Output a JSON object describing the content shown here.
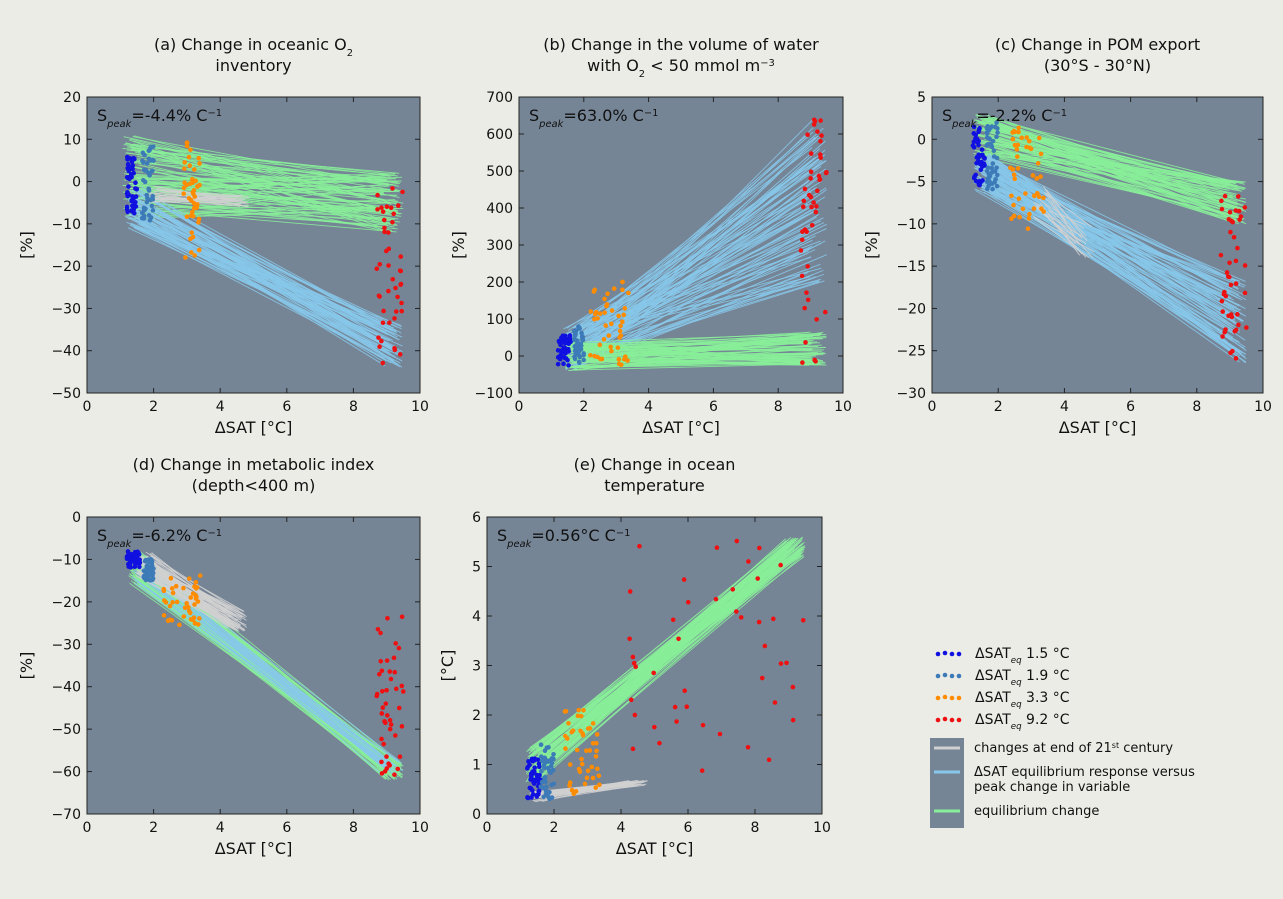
{
  "figure": {
    "background": "#ecece7",
    "axes_background": "#768596"
  },
  "colors": {
    "sat_1_5": "#1010e0",
    "sat_1_9": "#3d7ab8",
    "sat_3_3": "#ff8c00",
    "sat_9_2": "#ee1111",
    "line_21st": "#d0d0d0",
    "line_peak": "#87c8ea",
    "line_equilibrium": "#88ee99"
  },
  "legend": {
    "items": [
      {
        "label": "ΔSAT_eq 1.5 °C",
        "base": "ΔSAT",
        "sub": "eq",
        "rest": " 1.5 °C",
        "color": "#1010e0",
        "kind": "dots"
      },
      {
        "label": "ΔSAT_eq 1.9 °C",
        "base": "ΔSAT",
        "sub": "eq",
        "rest": " 1.9 °C",
        "color": "#3d7ab8",
        "kind": "dots"
      },
      {
        "label": "ΔSAT_eq 3.3 °C",
        "base": "ΔSAT",
        "sub": "eq",
        "rest": " 3.3 °C",
        "color": "#ff8c00",
        "kind": "dots"
      },
      {
        "label": "ΔSAT_eq 9.2 °C",
        "base": "ΔSAT",
        "sub": "eq",
        "rest": " 9.2 °C",
        "color": "#ee1111",
        "kind": "dots"
      },
      {
        "label": "changes at end of 21st century",
        "lines": [
          "changes at end of 21st century"
        ],
        "color": "#d0d0d0",
        "kind": "line"
      },
      {
        "label": "ΔSAT equilibrium response versus peak change in variable",
        "lines": [
          "ΔSAT equilibrium response versus",
          "peak change in variable"
        ],
        "color": "#87c8ea",
        "kind": "line"
      },
      {
        "label": "equilibrium change",
        "lines": [
          "equilibrium change"
        ],
        "color": "#88ee99",
        "kind": "line"
      }
    ]
  },
  "chart_data": [
    {
      "id": "a",
      "type": "scatter",
      "title_lines": [
        "(a) Change in oceanic O2",
        "inventory"
      ],
      "annotation": "S_peak=-4.4% C-1",
      "xlabel": "ΔSAT [°C]",
      "ylabel": "[%]",
      "xlim": [
        0,
        10
      ],
      "ylim": [
        -50,
        20
      ],
      "xticks": [
        0,
        2,
        4,
        6,
        8,
        10
      ],
      "yticks": [
        -50,
        -40,
        -30,
        -20,
        -10,
        0,
        10,
        20
      ],
      "series": [
        {
          "group": "1.5",
          "x": [
            1.2,
            1.5
          ],
          "y": [
            -7.5,
            7.0
          ]
        },
        {
          "group": "1.9",
          "x": [
            1.65,
            2.0
          ],
          "y": [
            -9.5,
            9.0
          ]
        },
        {
          "group": "3.3",
          "x": [
            2.9,
            3.4
          ],
          "y": [
            -19,
            10.0
          ]
        },
        {
          "group": "9.2",
          "x": [
            8.7,
            9.5
          ],
          "y": [
            -43,
            0
          ]
        }
      ],
      "bands": [
        {
          "kind": "equilibrium",
          "from": [
            1.3,
            1.0
          ],
          "to": [
            9.2,
            -5.0
          ],
          "spread": [
            10,
            7
          ],
          "density": 90
        },
        {
          "kind": "peak",
          "from": [
            1.4,
            -6.0
          ],
          "to": [
            9.2,
            -39.0
          ],
          "spread": [
            5,
            5
          ],
          "density": 70
        },
        {
          "kind": "21st",
          "from": [
            2.0,
            -3.0
          ],
          "to": [
            4.6,
            -4.5
          ],
          "spread": [
            2,
            1.5
          ],
          "density": 25
        }
      ]
    },
    {
      "id": "b",
      "type": "scatter",
      "title_lines": [
        "(b) Change in the volume of water",
        "with O2 < 50 mmol m-3"
      ],
      "annotation": "S_peak=63.0% C-1",
      "xlabel": "ΔSAT [°C]",
      "ylabel": "[%]",
      "xlim": [
        0,
        10
      ],
      "ylim": [
        -100,
        700
      ],
      "xticks": [
        0,
        2,
        4,
        6,
        8,
        10
      ],
      "yticks": [
        -100,
        0,
        100,
        200,
        300,
        400,
        500,
        600,
        700
      ],
      "series": [
        {
          "group": "1.5",
          "x": [
            1.2,
            1.6
          ],
          "y": [
            -30,
            60
          ]
        },
        {
          "group": "1.9",
          "x": [
            1.7,
            2.0
          ],
          "y": [
            -20,
            80
          ]
        },
        {
          "group": "3.3",
          "x": [
            2.2,
            3.4
          ],
          "y": [
            -30,
            210
          ]
        },
        {
          "group": "9.2",
          "x": [
            8.7,
            9.5
          ],
          "y": [
            -20,
            640
          ]
        }
      ],
      "bands": [
        {
          "kind": "peak",
          "from": [
            1.6,
            20
          ],
          "to": [
            9.2,
            420
          ],
          "spread": [
            60,
            220
          ],
          "density": 90
        },
        {
          "kind": "equilibrium",
          "from": [
            1.6,
            0
          ],
          "to": [
            9.2,
            20
          ],
          "spread": [
            40,
            45
          ],
          "density": 80
        }
      ]
    },
    {
      "id": "c",
      "type": "scatter",
      "title_lines": [
        "(c) Change in POM export",
        "(30°S - 30°N)"
      ],
      "annotation": "S_peak=-2.2% C-1",
      "xlabel": "ΔSAT [°C]",
      "ylabel": "[%]",
      "xlim": [
        0,
        10
      ],
      "ylim": [
        -30,
        5
      ],
      "xticks": [
        0,
        2,
        4,
        6,
        8,
        10
      ],
      "yticks": [
        -30,
        -25,
        -20,
        -15,
        -10,
        -5,
        0,
        5
      ],
      "series": [
        {
          "group": "1.5",
          "x": [
            1.2,
            1.6
          ],
          "y": [
            -5.5,
            1.5
          ]
        },
        {
          "group": "1.9",
          "x": [
            1.65,
            2.0
          ],
          "y": [
            -6.0,
            2.0
          ]
        },
        {
          "group": "3.3",
          "x": [
            2.3,
            3.4
          ],
          "y": [
            -11,
            1.5
          ]
        },
        {
          "group": "9.2",
          "x": [
            8.7,
            9.5
          ],
          "y": [
            -26,
            -6
          ]
        }
      ],
      "bands": [
        {
          "kind": "equilibrium",
          "from": [
            1.5,
            0.5
          ],
          "to": [
            9.2,
            -7.5
          ],
          "spread": [
            2.5,
            2.5
          ],
          "density": 80
        },
        {
          "kind": "peak",
          "from": [
            1.5,
            -4.0
          ],
          "to": [
            9.2,
            -21.5
          ],
          "spread": [
            2.5,
            5
          ],
          "density": 90
        },
        {
          "kind": "21st",
          "from": [
            3.3,
            -7.5
          ],
          "to": [
            4.6,
            -12.0
          ],
          "spread": [
            2,
            2
          ],
          "density": 20
        }
      ]
    },
    {
      "id": "d",
      "type": "scatter",
      "title_lines": [
        "(d) Change in metabolic index",
        "(depth<400 m)"
      ],
      "annotation": "S_peak=-6.2% C-1",
      "xlabel": "ΔSAT [°C]",
      "ylabel": "[%]",
      "xlim": [
        0,
        10
      ],
      "ylim": [
        -70,
        0
      ],
      "xticks": [
        0,
        2,
        4,
        6,
        8,
        10
      ],
      "yticks": [
        -70,
        -60,
        -50,
        -40,
        -30,
        -20,
        -10,
        0
      ],
      "series": [
        {
          "group": "1.5",
          "x": [
            1.2,
            1.6
          ],
          "y": [
            -12,
            -8
          ]
        },
        {
          "group": "1.9",
          "x": [
            1.7,
            2.0
          ],
          "y": [
            -15,
            -10
          ]
        },
        {
          "group": "3.3",
          "x": [
            2.3,
            3.4
          ],
          "y": [
            -26,
            -13
          ]
        },
        {
          "group": "9.2",
          "x": [
            8.7,
            9.5
          ],
          "y": [
            -61,
            -23
          ]
        }
      ],
      "bands": [
        {
          "kind": "equilibrium",
          "from": [
            1.5,
            -12
          ],
          "to": [
            9.2,
            -60
          ],
          "spread": [
            4,
            2
          ],
          "density": 90
        },
        {
          "kind": "peak",
          "from": [
            1.6,
            -13
          ],
          "to": [
            9.2,
            -59.5
          ],
          "spread": [
            3,
            2
          ],
          "density": 25
        },
        {
          "kind": "21st",
          "from": [
            1.7,
            -11
          ],
          "to": [
            4.5,
            -24.5
          ],
          "spread": [
            3,
            2.5
          ],
          "density": 60
        }
      ]
    },
    {
      "id": "e",
      "type": "scatter",
      "title_lines": [
        "(e) Change in ocean",
        "temperature"
      ],
      "annotation": "S_peak=0.56°C C-1",
      "xlabel": "ΔSAT [°C]",
      "ylabel": "[°C]",
      "xlim": [
        0,
        10
      ],
      "ylim": [
        0,
        6
      ],
      "xticks": [
        0,
        2,
        4,
        6,
        8,
        10
      ],
      "yticks": [
        0,
        1,
        2,
        3,
        4,
        5,
        6
      ],
      "series": [
        {
          "group": "1.5",
          "x": [
            1.2,
            1.6
          ],
          "y": [
            0.3,
            1.15
          ]
        },
        {
          "group": "1.9",
          "x": [
            1.6,
            2.0
          ],
          "y": [
            0.3,
            1.4
          ]
        },
        {
          "group": "3.3",
          "x": [
            2.3,
            3.4
          ],
          "y": [
            0.4,
            2.1
          ]
        },
        {
          "group": "9.2",
          "x": [
            4.2,
            9.5
          ],
          "y": [
            0.6,
            5.55
          ]
        }
      ],
      "bands": [
        {
          "kind": "equilibrium",
          "from": [
            1.4,
            1.0
          ],
          "to": [
            9.2,
            5.4
          ],
          "spread": [
            0.35,
            0.2
          ],
          "density": 90
        },
        {
          "kind": "21st",
          "from": [
            1.5,
            0.35
          ],
          "to": [
            4.5,
            0.62
          ],
          "spread": [
            0.1,
            0.06
          ],
          "density": 30
        }
      ]
    }
  ]
}
